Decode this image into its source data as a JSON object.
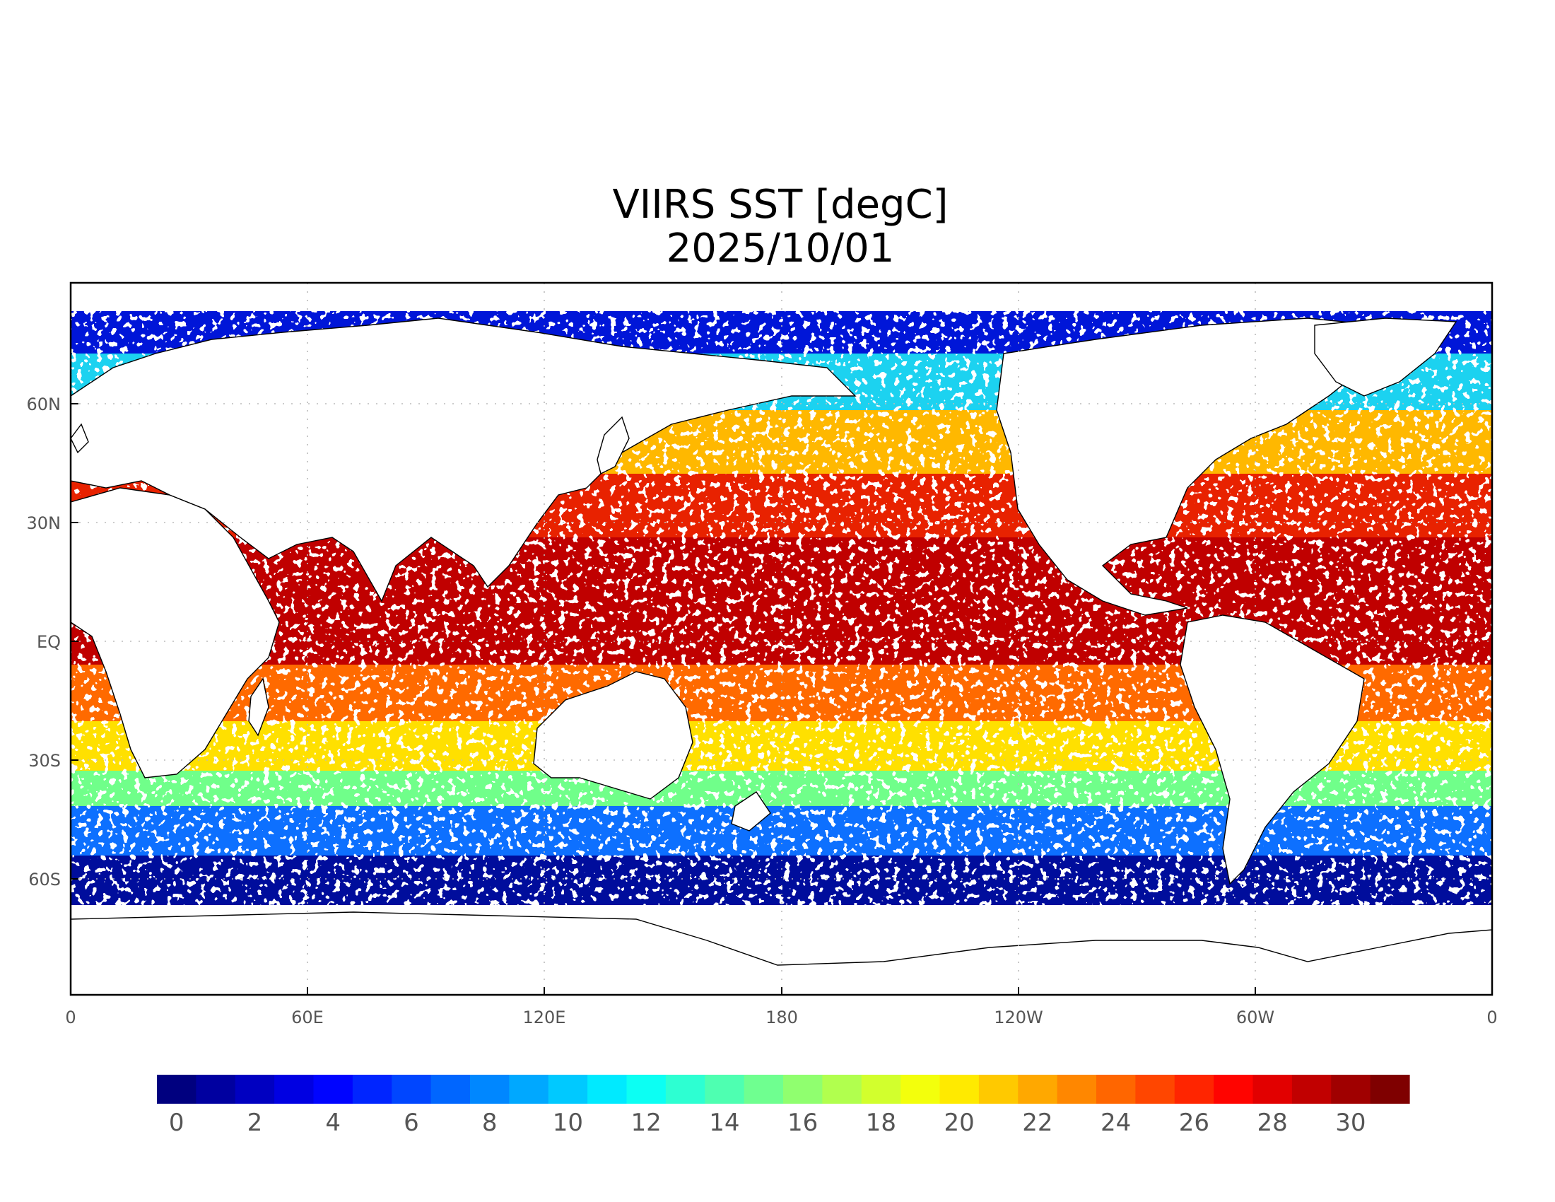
{
  "title": "VIIRS SST [degC]",
  "date": "2025/10/01",
  "x_ticks": [
    "0",
    "60E",
    "120E",
    "180",
    "120W",
    "60W",
    "0"
  ],
  "y_ticks": [
    "60N",
    "30N",
    "EQ",
    "30S",
    "60S"
  ],
  "colorbar": {
    "labels": [
      "0",
      "2",
      "4",
      "6",
      "8",
      "10",
      "12",
      "14",
      "16",
      "18",
      "20",
      "22",
      "24",
      "26",
      "28",
      "30"
    ],
    "min": -0.5,
    "max": 31.5,
    "steps": 32,
    "colors": [
      "#00007f",
      "#0000ff",
      "#007fff",
      "#00ffff",
      "#7fff7f",
      "#ffff00",
      "#ff7f00",
      "#ff0000",
      "#7f0000"
    ]
  },
  "chart_data": {
    "type": "heatmap",
    "title": "VIIRS SST [degC]",
    "subtitle": "2025/10/01",
    "projection": "equirectangular, 0 to 360 longitude",
    "xlim": [
      0,
      360
    ],
    "ylim": [
      -90,
      90
    ],
    "grid": true,
    "value_range": [
      0,
      31
    ],
    "units": "degC"
  }
}
